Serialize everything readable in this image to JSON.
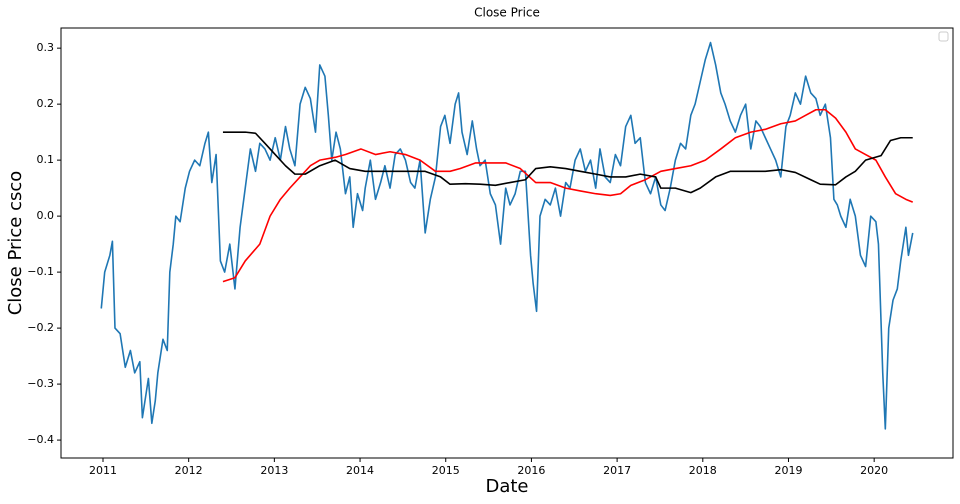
{
  "chart_data": {
    "type": "line",
    "title": "Close Price",
    "xlabel": "Date",
    "ylabel": "Close Price csco",
    "xlim": [
      2010.51,
      2020.92
    ],
    "ylim": [
      -0.432,
      0.336
    ],
    "xticks": [
      2011,
      2012,
      2013,
      2014,
      2015,
      2016,
      2017,
      2018,
      2019,
      2020
    ],
    "yticks": [
      {
        "value": -0.4,
        "label": "−0.4"
      },
      {
        "value": -0.3,
        "label": "−0.3"
      },
      {
        "value": -0.2,
        "label": "−0.2"
      },
      {
        "value": -0.1,
        "label": "−0.1"
      },
      {
        "value": 0,
        "label": "0.0"
      },
      0.1,
      0.2,
      0.3
    ],
    "grid": false,
    "legend": "upper right",
    "series": [
      {
        "color": "#1f77b4",
        "x": [
          2010.98,
          2011.02,
          2011.08,
          2011.11,
          2011.14,
          2011.2,
          2011.26,
          2011.32,
          2011.37,
          2011.43,
          2011.46,
          2011.53,
          2011.57,
          2011.61,
          2011.64,
          2011.7,
          2011.75,
          2011.78,
          2011.82,
          2011.85,
          2011.9,
          2011.96,
          2012.01,
          2012.07,
          2012.13,
          2012.19,
          2012.23,
          2012.27,
          2012.32,
          2012.37,
          2012.42,
          2012.48,
          2012.54,
          2012.6,
          2012.66,
          2012.72,
          2012.78,
          2012.83,
          2012.89,
          2012.95,
          2013.01,
          2013.07,
          2013.13,
          2013.18,
          2013.24,
          2013.3,
          2013.36,
          2013.42,
          2013.48,
          2013.53,
          2013.59,
          2013.63,
          2013.67,
          2013.72,
          2013.77,
          2013.83,
          2013.88,
          2013.92,
          2013.97,
          2014.03,
          2014.06,
          2014.12,
          2014.18,
          2014.24,
          2014.29,
          2014.35,
          2014.41,
          2014.47,
          2014.53,
          2014.59,
          2014.64,
          2014.7,
          2014.76,
          2014.82,
          2014.88,
          2014.94,
          2014.99,
          2015.05,
          2015.11,
          2015.15,
          2015.19,
          2015.25,
          2015.31,
          2015.36,
          2015.4,
          2015.46,
          2015.52,
          2015.58,
          2015.64,
          2015.7,
          2015.75,
          2015.81,
          2015.87,
          2015.93,
          2015.99,
          2016.02,
          2016.06,
          2016.1,
          2016.16,
          2016.22,
          2016.28,
          2016.34,
          2016.4,
          2016.45,
          2016.51,
          2016.57,
          2016.63,
          2016.69,
          2016.75,
          2016.8,
          2016.86,
          2016.92,
          2016.98,
          2017.04,
          2017.1,
          2017.16,
          2017.21,
          2017.27,
          2017.33,
          2017.39,
          2017.45,
          2017.51,
          2017.56,
          2017.62,
          2017.68,
          2017.74,
          2017.8,
          2017.86,
          2017.91,
          2017.97,
          2018.03,
          2018.09,
          2018.15,
          2018.21,
          2018.26,
          2018.32,
          2018.38,
          2018.44,
          2018.5,
          2018.56,
          2018.62,
          2018.67,
          2018.73,
          2018.79,
          2018.85,
          2018.91,
          2018.97,
          2019.02,
          2019.08,
          2019.14,
          2019.2,
          2019.26,
          2019.32,
          2019.37,
          2019.43,
          2019.49,
          2019.53,
          2019.57,
          2019.61,
          2019.67,
          2019.72,
          2019.78,
          2019.84,
          2019.9,
          2019.96,
          2020.02,
          2020.05,
          2020.1,
          2020.13,
          2020.17,
          2020.22,
          2020.27,
          2020.31,
          2020.37,
          2020.4,
          2020.45
        ],
        "values": [
          -0.165,
          -0.1,
          -0.07,
          -0.045,
          -0.2,
          -0.21,
          -0.27,
          -0.24,
          -0.28,
          -0.26,
          -0.36,
          -0.29,
          -0.37,
          -0.33,
          -0.28,
          -0.22,
          -0.24,
          -0.1,
          -0.05,
          0.0,
          -0.01,
          0.05,
          0.08,
          0.1,
          0.09,
          0.13,
          0.15,
          0.06,
          0.11,
          -0.08,
          -0.1,
          -0.05,
          -0.13,
          -0.02,
          0.05,
          0.12,
          0.08,
          0.13,
          0.12,
          0.1,
          0.14,
          0.1,
          0.16,
          0.12,
          0.09,
          0.2,
          0.23,
          0.21,
          0.15,
          0.27,
          0.25,
          0.18,
          0.1,
          0.15,
          0.12,
          0.04,
          0.07,
          -0.02,
          0.04,
          0.01,
          0.05,
          0.1,
          0.03,
          0.06,
          0.09,
          0.05,
          0.11,
          0.12,
          0.1,
          0.06,
          0.05,
          0.1,
          -0.03,
          0.03,
          0.07,
          0.16,
          0.18,
          0.13,
          0.2,
          0.22,
          0.15,
          0.11,
          0.17,
          0.12,
          0.09,
          0.1,
          0.04,
          0.02,
          -0.05,
          0.05,
          0.02,
          0.04,
          0.08,
          0.08,
          -0.07,
          -0.12,
          -0.17,
          0.0,
          0.03,
          0.02,
          0.05,
          0.0,
          0.06,
          0.05,
          0.1,
          0.12,
          0.08,
          0.1,
          0.05,
          0.12,
          0.07,
          0.06,
          0.11,
          0.09,
          0.16,
          0.18,
          0.13,
          0.14,
          0.06,
          0.04,
          0.07,
          0.02,
          0.01,
          0.05,
          0.1,
          0.13,
          0.12,
          0.18,
          0.2,
          0.24,
          0.28,
          0.31,
          0.27,
          0.22,
          0.2,
          0.17,
          0.15,
          0.18,
          0.2,
          0.12,
          0.17,
          0.16,
          0.14,
          0.12,
          0.1,
          0.07,
          0.16,
          0.18,
          0.22,
          0.2,
          0.25,
          0.22,
          0.21,
          0.18,
          0.2,
          0.14,
          0.03,
          0.02,
          0.0,
          -0.02,
          0.03,
          0.0,
          -0.07,
          -0.09,
          0.0,
          -0.01,
          -0.05,
          -0.28,
          -0.38,
          -0.2,
          -0.15,
          -0.13,
          -0.08,
          -0.02,
          -0.07,
          -0.03
        ]
      },
      {
        "color": "#ff0000",
        "x": [
          2012.4,
          2012.54,
          2012.66,
          2012.83,
          2012.95,
          2013.07,
          2013.18,
          2013.3,
          2013.42,
          2013.53,
          2013.71,
          2013.83,
          2014.01,
          2014.18,
          2014.35,
          2014.53,
          2014.7,
          2014.88,
          2015.05,
          2015.17,
          2015.35,
          2015.52,
          2015.7,
          2015.87,
          2016.05,
          2016.22,
          2016.4,
          2016.57,
          2016.75,
          2016.92,
          2017.04,
          2017.16,
          2017.33,
          2017.51,
          2017.68,
          2017.86,
          2018.03,
          2018.21,
          2018.38,
          2018.56,
          2018.73,
          2018.91,
          2019.08,
          2019.2,
          2019.32,
          2019.43,
          2019.55,
          2019.67,
          2019.78,
          2019.9,
          2020.02,
          2020.13,
          2020.25,
          2020.37,
          2020.45
        ],
        "values": [
          -0.117,
          -0.11,
          -0.08,
          -0.05,
          0.0,
          0.03,
          0.05,
          0.07,
          0.09,
          0.1,
          0.105,
          0.11,
          0.12,
          0.11,
          0.115,
          0.11,
          0.1,
          0.08,
          0.08,
          0.085,
          0.095,
          0.095,
          0.095,
          0.085,
          0.06,
          0.06,
          0.05,
          0.045,
          0.04,
          0.037,
          0.04,
          0.055,
          0.065,
          0.08,
          0.085,
          0.09,
          0.1,
          0.12,
          0.14,
          0.15,
          0.155,
          0.165,
          0.17,
          0.18,
          0.19,
          0.19,
          0.175,
          0.15,
          0.12,
          0.11,
          0.1,
          0.07,
          0.04,
          0.03,
          0.025
        ]
      },
      {
        "color": "#000000",
        "x": [
          2012.4,
          2012.66,
          2012.78,
          2012.89,
          2013.01,
          2013.13,
          2013.24,
          2013.36,
          2013.53,
          2013.71,
          2013.88,
          2014.06,
          2014.24,
          2014.41,
          2014.59,
          2014.76,
          2014.94,
          2015.05,
          2015.23,
          2015.4,
          2015.58,
          2015.75,
          2015.93,
          2016.05,
          2016.22,
          2016.4,
          2016.57,
          2016.75,
          2016.92,
          2017.1,
          2017.27,
          2017.45,
          2017.51,
          2017.68,
          2017.86,
          2017.97,
          2018.15,
          2018.32,
          2018.56,
          2018.73,
          2018.91,
          2019.08,
          2019.26,
          2019.37,
          2019.55,
          2019.67,
          2019.78,
          2019.9,
          2020.08,
          2020.19,
          2020.31,
          2020.45
        ],
        "values": [
          0.15,
          0.15,
          0.148,
          0.13,
          0.11,
          0.09,
          0.075,
          0.075,
          0.09,
          0.1,
          0.085,
          0.08,
          0.08,
          0.08,
          0.08,
          0.08,
          0.07,
          0.057,
          0.058,
          0.057,
          0.055,
          0.06,
          0.065,
          0.085,
          0.088,
          0.085,
          0.08,
          0.075,
          0.07,
          0.07,
          0.075,
          0.07,
          0.05,
          0.05,
          0.042,
          0.05,
          0.07,
          0.08,
          0.08,
          0.08,
          0.083,
          0.078,
          0.065,
          0.057,
          0.056,
          0.07,
          0.08,
          0.1,
          0.108,
          0.135,
          0.14,
          0.14
        ]
      }
    ]
  }
}
